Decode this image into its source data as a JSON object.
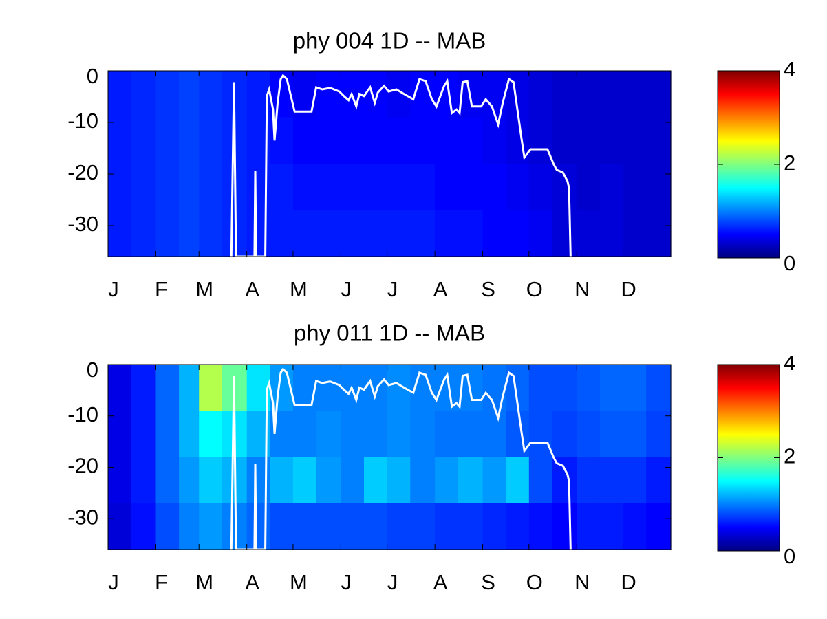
{
  "chart_data": [
    {
      "type": "heatmap",
      "title": "phy  004 1D   -- MAB",
      "xlim": [
        1,
        366
      ],
      "xticks": [
        {
          "value": 1,
          "label": "J"
        },
        {
          "value": 32,
          "label": "F"
        },
        {
          "value": 60,
          "label": "M"
        },
        {
          "value": 91,
          "label": "A"
        },
        {
          "value": 121,
          "label": "M"
        },
        {
          "value": 152,
          "label": "J"
        },
        {
          "value": 182,
          "label": "J"
        },
        {
          "value": 213,
          "label": "A"
        },
        {
          "value": 244,
          "label": "S"
        },
        {
          "value": 274,
          "label": "O"
        },
        {
          "value": 305,
          "label": "N"
        },
        {
          "value": 335,
          "label": "D"
        }
      ],
      "ylim": [
        -36,
        0
      ],
      "yticks": [
        -30,
        -20,
        -10,
        0
      ],
      "heatmap": {
        "x_edges": [
          1,
          16,
          32,
          47,
          60,
          75,
          91,
          106,
          121,
          136,
          152,
          167,
          182,
          197,
          213,
          228,
          244,
          259,
          274,
          289,
          305,
          320,
          335,
          350,
          366
        ],
        "y_edges": [
          0,
          -9,
          -18,
          -27,
          -36
        ],
        "values": [
          [
            0.6,
            0.65,
            0.7,
            0.75,
            0.7,
            0.65,
            0.6,
            0.5,
            0.45,
            0.5,
            0.5,
            0.5,
            0.45,
            0.5,
            0.5,
            0.45,
            0.45,
            0.4,
            0.35,
            0.3,
            0.3,
            0.3,
            0.3,
            0.3
          ],
          [
            0.6,
            0.65,
            0.7,
            0.75,
            0.7,
            0.65,
            0.6,
            0.55,
            0.5,
            0.5,
            0.5,
            0.5,
            0.5,
            0.5,
            0.5,
            0.5,
            0.45,
            0.4,
            0.35,
            0.3,
            0.3,
            0.3,
            0.3,
            0.3
          ],
          [
            0.6,
            0.65,
            0.7,
            0.75,
            0.7,
            0.65,
            0.6,
            0.6,
            0.55,
            0.55,
            0.55,
            0.55,
            0.55,
            0.55,
            0.5,
            0.5,
            0.5,
            0.45,
            0.4,
            0.35,
            0.3,
            0.35,
            0.3,
            0.3
          ],
          [
            0.6,
            0.65,
            0.7,
            0.75,
            0.7,
            0.65,
            0.6,
            0.6,
            0.6,
            0.6,
            0.6,
            0.6,
            0.6,
            0.6,
            0.55,
            0.55,
            0.5,
            0.5,
            0.45,
            0.35,
            0.35,
            0.35,
            0.3,
            0.3
          ]
        ]
      },
      "series": [
        {
          "color": "#ffffff",
          "x": [
            81,
            82.7,
            84,
            96,
            96.5,
            97,
            103,
            104,
            105.5,
            108,
            109,
            111,
            113,
            114.5,
            117,
            122,
            133,
            136,
            140,
            145,
            151,
            154,
            157,
            159,
            162,
            164,
            167,
            171,
            174,
            176,
            180,
            183,
            188,
            193,
            199,
            203,
            207,
            211,
            214,
            219,
            221,
            224,
            227,
            229,
            231,
            234,
            237,
            243,
            246,
            250,
            254,
            257,
            261,
            264,
            269,
            271,
            275,
            286,
            290,
            292,
            296,
            299,
            300,
            301
          ],
          "values": [
            -36,
            -2.2,
            -36,
            -36,
            -19.4,
            -36,
            -36,
            -4.9,
            -3.6,
            -7.5,
            -13.5,
            -6.2,
            -1.6,
            -0.9,
            -1.6,
            -7.9,
            -7.9,
            -3.2,
            -3.6,
            -3.3,
            -4,
            -4.9,
            -5.7,
            -4.5,
            -6.9,
            -4.5,
            -4.9,
            -3.2,
            -6.2,
            -4.2,
            -2.9,
            -4,
            -3.6,
            -4.5,
            -5.5,
            -1.6,
            -2,
            -5.5,
            -6.9,
            -2.9,
            -2,
            -8.2,
            -7.5,
            -8.2,
            -2.2,
            -2,
            -6.9,
            -6.9,
            -5.5,
            -6.9,
            -10.4,
            -6.2,
            -1.6,
            -2.2,
            -12.8,
            -16.8,
            -15.2,
            -15.2,
            -18.1,
            -19.2,
            -19.7,
            -21.4,
            -22.7,
            -36
          ]
        }
      ],
      "colorbar": {
        "clim": [
          0,
          4
        ],
        "ticks": [
          0,
          2,
          4
        ],
        "colormap": "jet"
      }
    },
    {
      "type": "heatmap",
      "title": "phy  011 1D   -- MAB",
      "xlim": [
        1,
        366
      ],
      "xticks": [
        {
          "value": 1,
          "label": "J"
        },
        {
          "value": 32,
          "label": "F"
        },
        {
          "value": 60,
          "label": "M"
        },
        {
          "value": 91,
          "label": "A"
        },
        {
          "value": 121,
          "label": "M"
        },
        {
          "value": 152,
          "label": "J"
        },
        {
          "value": 182,
          "label": "J"
        },
        {
          "value": 213,
          "label": "A"
        },
        {
          "value": 244,
          "label": "S"
        },
        {
          "value": 274,
          "label": "O"
        },
        {
          "value": 305,
          "label": "N"
        },
        {
          "value": 335,
          "label": "D"
        }
      ],
      "ylim": [
        -36,
        0
      ],
      "yticks": [
        -30,
        -20,
        -10,
        0
      ],
      "heatmap": {
        "x_edges": [
          1,
          16,
          32,
          47,
          60,
          75,
          91,
          106,
          121,
          136,
          152,
          167,
          182,
          197,
          213,
          228,
          244,
          259,
          274,
          289,
          305,
          320,
          335,
          350,
          366
        ],
        "y_edges": [
          0,
          -9,
          -18,
          -27,
          -36
        ],
        "values": [
          [
            0.4,
            0.6,
            0.9,
            1.2,
            2.2,
            1.9,
            1.4,
            1.1,
            1.0,
            1.0,
            1.0,
            1.0,
            1.05,
            1.0,
            1.0,
            1.0,
            0.95,
            0.9,
            0.8,
            0.8,
            0.85,
            0.9,
            0.9,
            0.8
          ],
          [
            0.4,
            0.6,
            0.9,
            1.2,
            1.5,
            1.4,
            1.2,
            1.0,
            1.0,
            1.05,
            1.0,
            1.0,
            1.05,
            1.0,
            0.95,
            0.95,
            0.95,
            0.85,
            0.8,
            0.75,
            0.8,
            0.85,
            0.85,
            0.75
          ],
          [
            0.4,
            0.6,
            0.9,
            1.1,
            1.3,
            1.2,
            1.0,
            1.2,
            1.3,
            1.1,
            1.0,
            1.3,
            1.2,
            1.0,
            1.1,
            1.2,
            1.1,
            1.3,
            0.8,
            0.6,
            0.7,
            0.7,
            0.7,
            0.6
          ],
          [
            0.35,
            0.55,
            0.8,
            1.0,
            1.1,
            1.0,
            0.9,
            0.8,
            0.8,
            0.8,
            0.8,
            0.8,
            0.75,
            0.75,
            0.7,
            0.7,
            0.65,
            0.6,
            0.55,
            0.5,
            0.6,
            0.6,
            0.55,
            0.5
          ]
        ]
      },
      "series": [
        {
          "color": "#ffffff",
          "x": [
            81,
            82.7,
            84,
            96,
            96.5,
            97,
            103,
            104,
            105.5,
            108,
            109,
            111,
            113,
            114.5,
            117,
            122,
            133,
            136,
            140,
            145,
            151,
            154,
            157,
            159,
            162,
            164,
            167,
            171,
            174,
            176,
            180,
            183,
            188,
            193,
            199,
            203,
            207,
            211,
            214,
            219,
            221,
            224,
            227,
            229,
            231,
            234,
            237,
            243,
            246,
            250,
            254,
            257,
            261,
            264,
            269,
            271,
            275,
            286,
            290,
            292,
            296,
            299,
            300,
            301
          ],
          "values": [
            -36,
            -2.2,
            -36,
            -36,
            -19.4,
            -36,
            -36,
            -4.9,
            -3.6,
            -7.5,
            -13.5,
            -6.2,
            -1.6,
            -0.9,
            -1.6,
            -7.9,
            -7.9,
            -3.2,
            -3.6,
            -3.3,
            -4,
            -4.9,
            -5.7,
            -4.5,
            -6.9,
            -4.5,
            -4.9,
            -3.2,
            -6.2,
            -4.2,
            -2.9,
            -4,
            -3.6,
            -4.5,
            -5.5,
            -1.6,
            -2,
            -5.5,
            -6.9,
            -2.9,
            -2,
            -8.2,
            -7.5,
            -8.2,
            -2.2,
            -2,
            -6.9,
            -6.9,
            -5.5,
            -6.9,
            -10.4,
            -6.2,
            -1.6,
            -2.2,
            -12.8,
            -16.8,
            -15.2,
            -15.2,
            -18.1,
            -19.2,
            -19.7,
            -21.4,
            -22.7,
            -36
          ]
        }
      ],
      "colorbar": {
        "clim": [
          0,
          4
        ],
        "ticks": [
          0,
          2,
          4
        ],
        "colormap": "jet"
      }
    }
  ]
}
